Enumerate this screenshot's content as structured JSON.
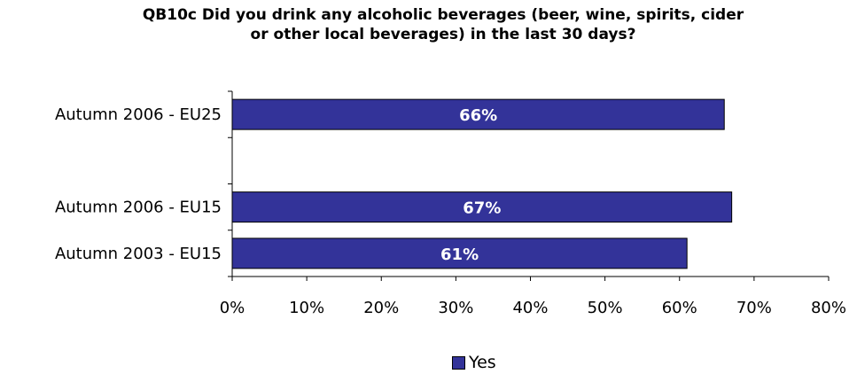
{
  "chart_data": {
    "type": "bar",
    "orientation": "horizontal",
    "title": "QB10c Did you drink any alcoholic beverages (beer, wine, spirits, cider or other local beverages) in the last 30 days?",
    "categories": [
      "Autumn 2006 - EU25",
      "",
      "Autumn 2006 - EU15",
      "Autumn 2003 - EU15"
    ],
    "series": [
      {
        "name": "Yes",
        "values": [
          66,
          null,
          67,
          61
        ],
        "labels": [
          "66%",
          "",
          "67%",
          "61%"
        ],
        "color": "#333399"
      }
    ],
    "xlim": [
      0,
      80
    ],
    "xticks": [
      0,
      10,
      20,
      30,
      40,
      50,
      60,
      70,
      80
    ],
    "xtick_labels": [
      "0%",
      "10%",
      "20%",
      "30%",
      "40%",
      "50%",
      "60%",
      "70%",
      "80%"
    ],
    "grid": false,
    "legend": "bottom"
  }
}
